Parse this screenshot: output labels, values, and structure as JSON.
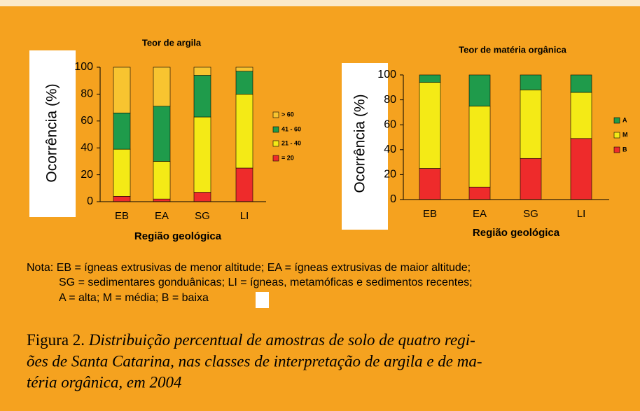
{
  "chart_data": [
    {
      "type": "stacked-bar",
      "title": "Teor de argila",
      "xlabel": "Região geológica",
      "ylabel": "Ocorrência (%)",
      "categories": [
        "EB",
        "EA",
        "SG",
        "LI"
      ],
      "series": [
        {
          "name": "= 20",
          "color": "#ee2b2b",
          "values": [
            4,
            2,
            7,
            25
          ]
        },
        {
          "name": "21 - 40",
          "color": "#f4ea16",
          "values": [
            35,
            28,
            56,
            55
          ]
        },
        {
          "name": "41 - 60",
          "color": "#1f9b4b",
          "values": [
            27,
            41,
            31,
            17
          ]
        },
        {
          "name": "> 60",
          "color": "#f8c430",
          "values": [
            34,
            29,
            6,
            3
          ]
        }
      ],
      "ylim": [
        0,
        100
      ],
      "yticks": [
        0,
        20,
        40,
        60,
        80,
        100
      ],
      "legend": "right"
    },
    {
      "type": "stacked-bar",
      "title": "Teor de matéria orgânica",
      "xlabel": "Região geológica",
      "ylabel": "Ocorrência (%)",
      "categories": [
        "EB",
        "EA",
        "SG",
        "LI"
      ],
      "series": [
        {
          "name": "B",
          "color": "#ee2b2b",
          "values": [
            25,
            10,
            33,
            49
          ]
        },
        {
          "name": "M",
          "color": "#f4ea16",
          "values": [
            69,
            65,
            55,
            37
          ]
        },
        {
          "name": "A",
          "color": "#1f9b4b",
          "values": [
            6,
            25,
            12,
            14
          ]
        }
      ],
      "ylim": [
        0,
        100
      ],
      "yticks": [
        0,
        20,
        40,
        60,
        80,
        100
      ],
      "legend": "right"
    }
  ],
  "note": [
    "Nota: EB = ígneas extrusivas de menor altitude; EA = ígneas extrusivas de maior altitude;",
    "SG = sedimentares gonduânicas; LI = ígneas, metamóficas e sedimentos recentes;",
    "A = alta; M = média; B = baixa"
  ],
  "caption": {
    "label": "Figura 2.",
    "lines": [
      " Distribuição percentual de amostras de solo de quatro regi-",
      "ões de Santa Catarina, nas classes de interpretação de argila e de ma-",
      "téria orgânica, em 2004"
    ]
  }
}
